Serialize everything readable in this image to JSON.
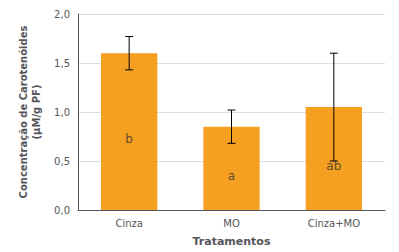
{
  "chart_data": {
    "type": "bar",
    "categories": [
      "Cinza",
      "MO",
      "Cinza+MO"
    ],
    "values": [
      1.6,
      0.85,
      1.05
    ],
    "errors": [
      0.17,
      0.17,
      0.55
    ],
    "color": "#F5A020",
    "xlabel": "Tratamentos",
    "ylabel": "Concentração de Carotenóides\n(μM/g PF)",
    "ylim": [
      0.0,
      2.0
    ],
    "yticks": [
      {
        "value": 0.0,
        "label": "0,0"
      },
      {
        "value": 0.5,
        "label": "0,5"
      },
      {
        "value": 1.0,
        "label": "1,0"
      },
      {
        "value": 1.5,
        "label": "1,5"
      },
      {
        "value": 2.0,
        "label": "2,0"
      }
    ],
    "annotations": [
      {
        "text": "b",
        "x": "Cinza",
        "y": 0.72
      },
      {
        "text": "a",
        "x": "MO",
        "y": 0.35
      },
      {
        "text": "ab",
        "x": "Cinza+MO",
        "y": 0.45
      }
    ],
    "grid": true
  }
}
